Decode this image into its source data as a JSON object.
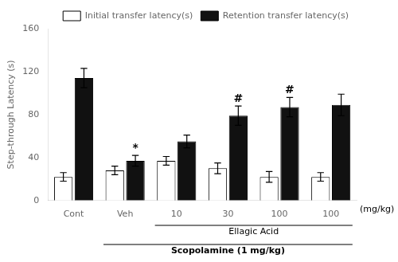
{
  "chart_data": {
    "type": "bar",
    "categories": [
      "Cont",
      "Veh",
      "10",
      "30",
      "100",
      "100"
    ],
    "series": [
      {
        "name": "Initial transfer latency(s)",
        "color": "#ffffff",
        "values": [
          22,
          28,
          37,
          30,
          22,
          22
        ],
        "errors": [
          4,
          4,
          4,
          5,
          5,
          4
        ]
      },
      {
        "name": "Retention transfer latency(s)",
        "color": "#111111",
        "values": [
          114,
          37,
          55,
          79,
          87,
          89
        ],
        "errors": [
          9,
          5,
          6,
          9,
          9,
          10
        ]
      }
    ],
    "edge_color": "#000000",
    "ylabel": "Step-through Latency (s)",
    "ylim": [
      0,
      160
    ],
    "yticks": [
      0,
      40,
      80,
      120,
      160
    ],
    "grid": false,
    "legend": "upper right",
    "markers": [
      {
        "text": "*",
        "series": 1,
        "category": 1
      },
      {
        "text": "#",
        "series": 1,
        "category": 3
      },
      {
        "text": "#",
        "series": 1,
        "category": 4
      }
    ],
    "axis_note": "(mg/kg)",
    "brackets": [
      {
        "text": "Ellagic Acid",
        "from": 2,
        "to": 5,
        "bold": false
      },
      {
        "text": "Scopolamine (1 mg/kg)",
        "from": 1,
        "to": 5,
        "bold": true
      }
    ]
  }
}
